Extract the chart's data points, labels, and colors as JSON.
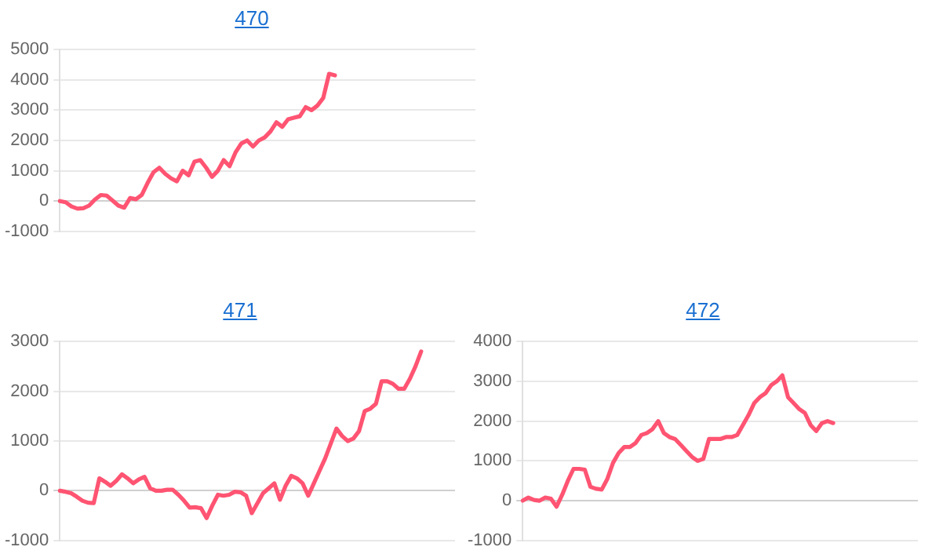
{
  "chart_data": [
    {
      "type": "line",
      "title": "470",
      "color": "#ff5472",
      "marker": "none",
      "line_style": "solid",
      "grid": "y",
      "tick_labels": "y",
      "ylim": [
        -1000,
        5000
      ],
      "yticks": [
        -1000,
        0,
        1000,
        2000,
        3000,
        4000,
        5000
      ],
      "categories": [
        null,
        null,
        null,
        null,
        null,
        null,
        null,
        null,
        null,
        null,
        null,
        null,
        null,
        null,
        null,
        null,
        null,
        null,
        null,
        null,
        null,
        null,
        null,
        null,
        null,
        null,
        null,
        null,
        null,
        null,
        null,
        null,
        null,
        null,
        null,
        null,
        null,
        null,
        null,
        null,
        null,
        null,
        null,
        null,
        null,
        null,
        null,
        null,
        null,
        null,
        null,
        null,
        null,
        null,
        null,
        null,
        null,
        null,
        null,
        null,
        null,
        null,
        null,
        null,
        null,
        null,
        null,
        null,
        null,
        null,
        null,
        null
      ],
      "values": [
        0,
        -40,
        -180,
        -250,
        -240,
        -150,
        50,
        200,
        180,
        20,
        -150,
        -220,
        100,
        60,
        200,
        600,
        950,
        1100,
        900,
        750,
        650,
        1000,
        850,
        1300,
        1350,
        1100,
        800,
        1000,
        1350,
        1150,
        1600,
        1900,
        2000,
        1800,
        2000,
        2100,
        2300,
        2600,
        2450,
        2700,
        2750,
        2800,
        3100,
        3000,
        3150,
        3400,
        4200,
        4150,
        null,
        null,
        null,
        null,
        null,
        null,
        null,
        null,
        null,
        null,
        null,
        null,
        null,
        null,
        null,
        null,
        null,
        null,
        null,
        null,
        null,
        null,
        null,
        null
      ]
    },
    {
      "type": "line",
      "title": "471",
      "color": "#ff5472",
      "marker": "none",
      "line_style": "solid",
      "grid": "y",
      "tick_labels": "y",
      "ylim": [
        -1000,
        3000
      ],
      "yticks": [
        -1000,
        0,
        1000,
        2000,
        3000
      ],
      "categories": [
        null,
        null,
        null,
        null,
        null,
        null,
        null,
        null,
        null,
        null,
        null,
        null,
        null,
        null,
        null,
        null,
        null,
        null,
        null,
        null,
        null,
        null,
        null,
        null,
        null,
        null,
        null,
        null,
        null,
        null,
        null,
        null,
        null,
        null,
        null,
        null,
        null,
        null,
        null,
        null,
        null,
        null,
        null,
        null,
        null,
        null,
        null,
        null,
        null,
        null,
        null,
        null,
        null,
        null,
        null,
        null,
        null,
        null,
        null,
        null,
        null,
        null,
        null,
        null,
        null,
        null,
        null,
        null,
        null,
        null,
        null
      ],
      "values": [
        0,
        -20,
        -50,
        -120,
        -200,
        -240,
        -250,
        250,
        180,
        100,
        200,
        330,
        250,
        150,
        230,
        280,
        50,
        0,
        0,
        20,
        20,
        -80,
        -200,
        -340,
        -330,
        -350,
        -550,
        -300,
        -80,
        -100,
        -80,
        -20,
        -30,
        -100,
        -450,
        -250,
        -50,
        50,
        150,
        -180,
        100,
        300,
        250,
        150,
        -100,
        150,
        400,
        650,
        950,
        1250,
        1100,
        1000,
        1050,
        1200,
        1600,
        1650,
        1750,
        2200,
        2200,
        2150,
        2050,
        2050,
        2250,
        2500,
        2800,
        null,
        null,
        null,
        null,
        null,
        null
      ]
    },
    {
      "type": "line",
      "title": "472",
      "color": "#ff5472",
      "marker": "none",
      "line_style": "solid",
      "grid": "y",
      "tick_labels": "y",
      "ylim": [
        -1000,
        4000
      ],
      "yticks": [
        -1000,
        0,
        1000,
        2000,
        3000,
        4000
      ],
      "categories": [
        null,
        null,
        null,
        null,
        null,
        null,
        null,
        null,
        null,
        null,
        null,
        null,
        null,
        null,
        null,
        null,
        null,
        null,
        null,
        null,
        null,
        null,
        null,
        null,
        null,
        null,
        null,
        null,
        null,
        null,
        null,
        null,
        null,
        null,
        null,
        null,
        null,
        null,
        null,
        null,
        null,
        null,
        null,
        null,
        null,
        null,
        null,
        null,
        null,
        null,
        null,
        null,
        null,
        null,
        null,
        null,
        null,
        null,
        null,
        null,
        null,
        null,
        null,
        null,
        null,
        null,
        null,
        null,
        null,
        null,
        null
      ],
      "values": [
        0,
        80,
        20,
        0,
        80,
        50,
        -150,
        150,
        500,
        800,
        800,
        780,
        350,
        300,
        280,
        550,
        950,
        1200,
        1350,
        1350,
        1450,
        1650,
        1700,
        1800,
        2000,
        1700,
        1600,
        1550,
        1400,
        1250,
        1100,
        1000,
        1050,
        1550,
        1550,
        1550,
        1600,
        1600,
        1650,
        1900,
        2150,
        2450,
        2600,
        2700,
        2900,
        3000,
        3150,
        2600,
        2450,
        2300,
        2200,
        1900,
        1750,
        1950,
        2000,
        1950,
        null,
        null,
        null,
        null,
        null,
        null,
        null,
        null,
        null,
        null,
        null,
        null,
        null,
        null,
        null
      ]
    }
  ]
}
